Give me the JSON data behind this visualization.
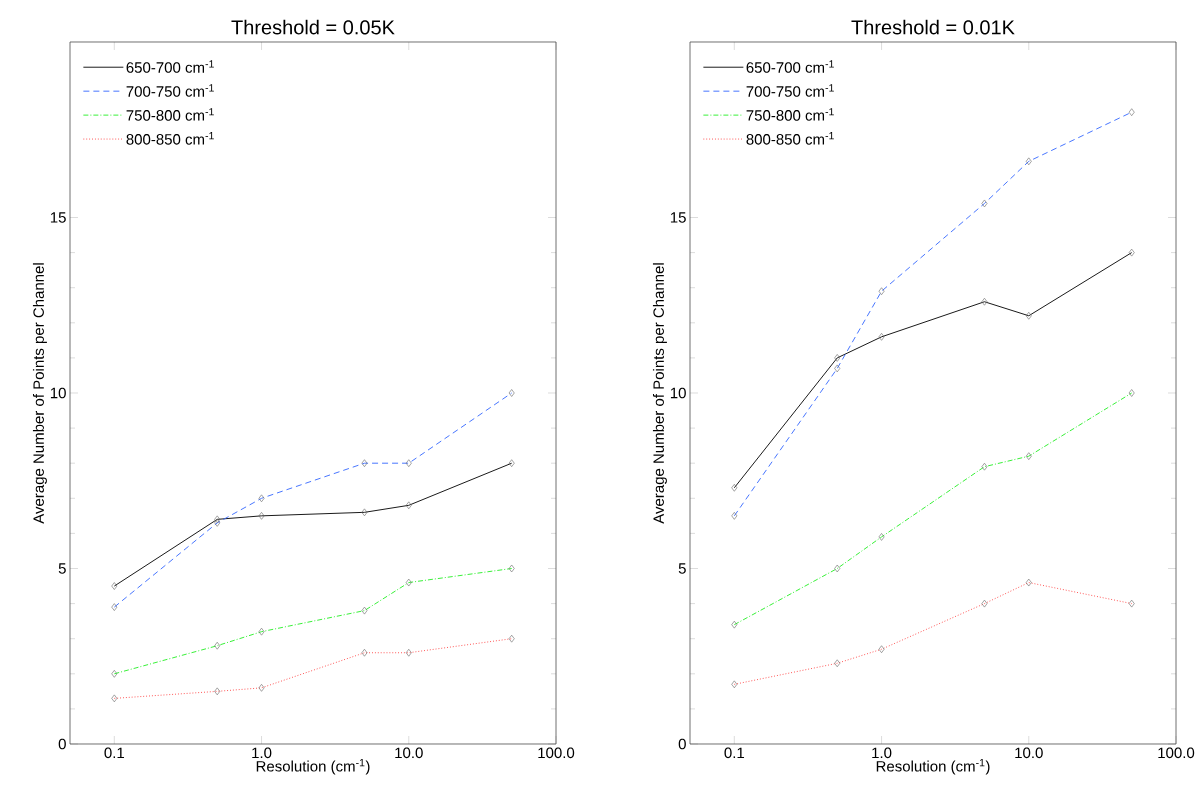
{
  "chart_data": [
    {
      "type": "line",
      "title": "Threshold = 0.05K",
      "xlabel": "Resolution (cm$^{-1}$)",
      "ylabel": "Average Number of Points per Channel",
      "log": "x",
      "legend": "top left",
      "marker": "diamond",
      "xlim": [
        0.05,
        100
      ],
      "xticks": [
        {
          "value": 0.1,
          "label": "0.1"
        },
        {
          "value": 1,
          "label": "1.0"
        },
        {
          "value": 10,
          "label": "10.0"
        },
        {
          "value": 100,
          "label": "100.0"
        }
      ],
      "ylim": [
        0,
        20
      ],
      "yticks": [
        0,
        5,
        10,
        15
      ],
      "x": [
        0.1,
        0.5,
        1,
        5,
        10,
        50
      ],
      "series": [
        {
          "name": "650-700 cm$^{-1}$",
          "color": "#000000",
          "line_style": "solid",
          "values": [
            4.5,
            6.4,
            6.5,
            6.6,
            6.8,
            8.0
          ]
        },
        {
          "name": "700-750 cm$^{-1}$",
          "color": "#3366ff",
          "line_style": "dashed",
          "values": [
            3.9,
            6.3,
            7.0,
            8.0,
            8.0,
            10.0
          ]
        },
        {
          "name": "750-800 cm$^{-1}$",
          "color": "#22ee22",
          "line_style": "dashdot",
          "values": [
            2.0,
            2.8,
            3.2,
            3.8,
            4.6,
            5.0
          ]
        },
        {
          "name": "800-850 cm$^{-1}$",
          "color": "#ff3333",
          "line_style": "dotted",
          "values": [
            1.3,
            1.5,
            1.6,
            2.6,
            2.6,
            3.0
          ]
        }
      ]
    },
    {
      "type": "line",
      "title": "Threshold = 0.01K",
      "xlabel": "Resolution (cm$^{-1}$)",
      "ylabel": "Average Number of Points per Channel",
      "log": "x",
      "legend": "top left",
      "marker": "diamond",
      "xlim": [
        0.05,
        100
      ],
      "xticks": [
        {
          "value": 0.1,
          "label": "0.1"
        },
        {
          "value": 1,
          "label": "1.0"
        },
        {
          "value": 10,
          "label": "10.0"
        },
        {
          "value": 100,
          "label": "100.0"
        }
      ],
      "ylim": [
        0,
        20
      ],
      "yticks": [
        0,
        5,
        10,
        15
      ],
      "x": [
        0.1,
        0.5,
        1,
        5,
        10,
        50
      ],
      "series": [
        {
          "name": "650-700 cm$^{-1}$",
          "color": "#000000",
          "line_style": "solid",
          "values": [
            7.3,
            11.0,
            11.6,
            12.6,
            12.2,
            14.0
          ]
        },
        {
          "name": "700-750 cm$^{-1}$",
          "color": "#3366ff",
          "line_style": "dashed",
          "values": [
            6.5,
            10.7,
            12.9,
            15.4,
            16.6,
            18.0
          ]
        },
        {
          "name": "750-800 cm$^{-1}$",
          "color": "#22ee22",
          "line_style": "dashdot",
          "values": [
            3.4,
            5.0,
            5.9,
            7.9,
            8.2,
            10.0
          ]
        },
        {
          "name": "800-850 cm$^{-1}$",
          "color": "#ff3333",
          "line_style": "dotted",
          "values": [
            1.7,
            2.3,
            2.7,
            4.0,
            4.6,
            4.0
          ]
        }
      ]
    }
  ]
}
